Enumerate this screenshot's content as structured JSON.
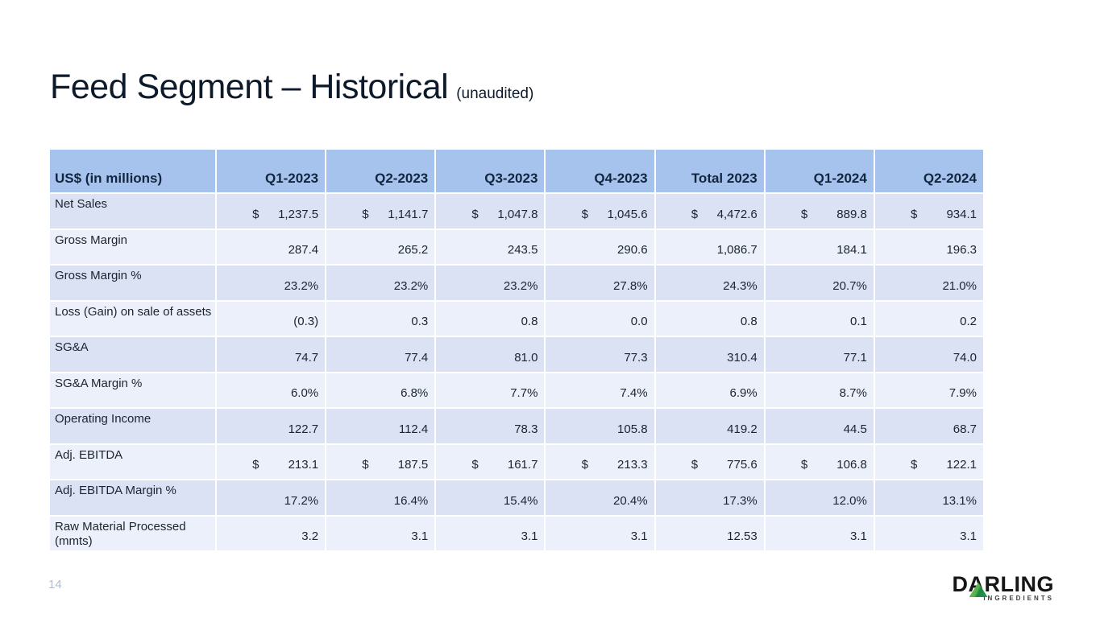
{
  "slide": {
    "title": "Feed Segment – Historical",
    "title_suffix": "(unaudited)",
    "page_number": "14"
  },
  "table": {
    "currency_symbol": "$",
    "header": [
      "US$ (in millions)",
      "Q1-2023",
      "Q2-2023",
      "Q3-2023",
      "Q4-2023",
      "Total 2023",
      "Q1-2024",
      "Q2-2024"
    ],
    "rows": [
      {
        "label": "Net Sales",
        "currency": true,
        "values": [
          "1,237.5",
          "1,141.7",
          "1,047.8",
          "1,045.6",
          "4,472.6",
          "889.8",
          "934.1"
        ]
      },
      {
        "label": "Gross Margin",
        "currency": false,
        "values": [
          "287.4",
          "265.2",
          "243.5",
          "290.6",
          "1,086.7",
          "184.1",
          "196.3"
        ]
      },
      {
        "label": "Gross Margin %",
        "currency": false,
        "values": [
          "23.2%",
          "23.2%",
          "23.2%",
          "27.8%",
          "24.3%",
          "20.7%",
          "21.0%"
        ]
      },
      {
        "label": "Loss (Gain) on sale of assets",
        "currency": false,
        "values": [
          "(0.3)",
          "0.3",
          "0.8",
          "0.0",
          "0.8",
          "0.1",
          "0.2"
        ]
      },
      {
        "label": "SG&A",
        "currency": false,
        "values": [
          "74.7",
          "77.4",
          "81.0",
          "77.3",
          "310.4",
          "77.1",
          "74.0"
        ]
      },
      {
        "label": "SG&A Margin %",
        "currency": false,
        "values": [
          "6.0%",
          "6.8%",
          "7.7%",
          "7.4%",
          "6.9%",
          "8.7%",
          "7.9%"
        ]
      },
      {
        "label": "Operating Income",
        "currency": false,
        "values": [
          "122.7",
          "112.4",
          "78.3",
          "105.8",
          "419.2",
          "44.5",
          "68.7"
        ]
      },
      {
        "label": "Adj. EBITDA",
        "currency": true,
        "values": [
          "213.1",
          "187.5",
          "161.7",
          "213.3",
          "775.6",
          "106.8",
          "122.1"
        ]
      },
      {
        "label": "Adj. EBITDA Margin %",
        "currency": false,
        "values": [
          "17.2%",
          "16.4%",
          "15.4%",
          "20.4%",
          "17.3%",
          "12.0%",
          "13.1%"
        ]
      },
      {
        "label": "Raw Material Processed (mmts)",
        "currency": false,
        "values": [
          "3.2",
          "3.1",
          "3.1",
          "3.1",
          "12.53",
          "3.1",
          "3.1"
        ]
      }
    ]
  },
  "logo": {
    "brand": "DARLING",
    "sub": "INGREDIENTS"
  },
  "colors": {
    "header_bg": "#a6c3ee",
    "row_dark_bg": "#dbe2f4",
    "row_light_bg": "#ecf0fa",
    "title_text": "#0d1a2b",
    "table_text": "#1b2430",
    "page_number_text": "#b4bdd0",
    "logo_green": "#27994e"
  }
}
